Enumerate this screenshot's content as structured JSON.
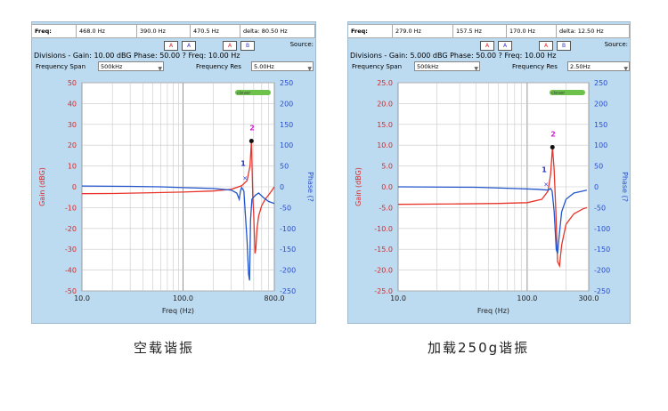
{
  "panels": [
    {
      "freq_bar": [
        "Freq:",
        "468.0 Hz",
        "390.0 Hz",
        "470.5 Hz",
        "delta: 80.50 Hz"
      ],
      "source_label": "Source:",
      "divisions": "Divisions - Gain: 10.00 dBG   Phase: 50.00 ?   Freq: 10.00 Hz",
      "span_label": "Frequency Span",
      "span_value": "500kHz",
      "res_label": "Frequency Res",
      "res_value": "5.00Hz",
      "caption": "空载谐振"
    },
    {
      "freq_bar": [
        "Freq:",
        "279.0 Hz",
        "157.5 Hz",
        "170.0 Hz",
        "delta: 12.50 Hz"
      ],
      "source_label": "Source:",
      "divisions": "Divisions - Gain: 5.000 dBG   Phase: 50.00 ?   Freq: 10.00 Hz",
      "span_label": "Frequency Span",
      "span_value": "500kHz",
      "res_label": "Frequency Res",
      "res_value": "2.50Hz",
      "caption": "加载250g谐振"
    }
  ],
  "icons": {
    "cursor_a": "A",
    "cursor_b": "A",
    "edit_a": "A",
    "edit_b": "B"
  },
  "logo": "clever",
  "chart_data": [
    {
      "type": "line",
      "xlabel": "Freq (Hz)",
      "ylabel": "Gain (dBG)",
      "y2label": "Phase (?",
      "x_scale": "log",
      "xlim": [
        10.0,
        800.0
      ],
      "x_ticks": [
        "10.0",
        "100.0",
        "800.0"
      ],
      "ylim": [
        -50,
        50
      ],
      "y_ticks": [
        "50",
        "40",
        "30",
        "20",
        "10",
        "0",
        "-10",
        "-20",
        "-30",
        "-40",
        "-50"
      ],
      "y2lim": [
        -250,
        250
      ],
      "y2_ticks": [
        "250",
        "200",
        "150",
        "100",
        "50",
        "0",
        "-50",
        "-100",
        "-150",
        "-200",
        "-250"
      ],
      "markers": [
        "1",
        "2"
      ],
      "series": [
        {
          "axis": "gain",
          "color": "#e8352b",
          "points": [
            [
              10,
              -3.3
            ],
            [
              20,
              -3.2
            ],
            [
              50,
              -2.8
            ],
            [
              100,
              -2.5
            ],
            [
              200,
              -2
            ],
            [
              300,
              -1.2
            ],
            [
              380,
              0.5
            ],
            [
              430,
              3
            ],
            [
              460,
              10
            ],
            [
              475,
              22
            ],
            [
              480,
              14
            ],
            [
              490,
              -5
            ],
            [
              500,
              -13
            ],
            [
              515,
              -32
            ],
            [
              525,
              -30
            ],
            [
              540,
              -20
            ],
            [
              560,
              -14
            ],
            [
              600,
              -9
            ],
            [
              650,
              -6
            ],
            [
              700,
              -4
            ],
            [
              750,
              -2
            ],
            [
              800,
              0
            ]
          ]
        },
        {
          "axis": "phase",
          "color": "#2255cc",
          "points": [
            [
              10,
              2
            ],
            [
              30,
              1
            ],
            [
              60,
              0
            ],
            [
              100,
              -2
            ],
            [
              200,
              -4
            ],
            [
              300,
              -8
            ],
            [
              340,
              -15
            ],
            [
              360,
              -30
            ],
            [
              370,
              -10
            ],
            [
              380,
              -2
            ],
            [
              400,
              -10
            ],
            [
              430,
              -130
            ],
            [
              445,
              -210
            ],
            [
              455,
              -225
            ],
            [
              465,
              -80
            ],
            [
              480,
              -30
            ],
            [
              520,
              -20
            ],
            [
              560,
              -15
            ],
            [
              620,
              -25
            ],
            [
              700,
              -35
            ],
            [
              800,
              -40
            ]
          ]
        }
      ]
    },
    {
      "type": "line",
      "xlabel": "Freq (Hz)",
      "ylabel": "Gain (dBG)",
      "y2label": "Phase (?",
      "x_scale": "log",
      "xlim": [
        10.0,
        300.0
      ],
      "x_ticks": [
        "10.0",
        "100.0",
        "300.0"
      ],
      "ylim": [
        -25,
        25
      ],
      "y_ticks": [
        "25.0",
        "20.0",
        "15.0",
        "10.0",
        "5.0",
        "0.0",
        "-5.0",
        "-10.0",
        "-15.0",
        "-20.0",
        "-25.0"
      ],
      "y2lim": [
        -250,
        250
      ],
      "y2_ticks": [
        "250",
        "200",
        "150",
        "100",
        "50",
        "0",
        "-50",
        "-100",
        "-150",
        "-200",
        "-250"
      ],
      "markers": [
        "1",
        "2"
      ],
      "series": [
        {
          "axis": "gain",
          "color": "#e8352b",
          "points": [
            [
              10,
              -4.2
            ],
            [
              30,
              -4.1
            ],
            [
              60,
              -4
            ],
            [
              100,
              -3.8
            ],
            [
              130,
              -3
            ],
            [
              145,
              -1
            ],
            [
              152,
              3
            ],
            [
              157,
              9.5
            ],
            [
              162,
              4
            ],
            [
              167,
              -6
            ],
            [
              172,
              -18
            ],
            [
              178,
              -19
            ],
            [
              185,
              -14
            ],
            [
              200,
              -9
            ],
            [
              230,
              -6.5
            ],
            [
              270,
              -5.3
            ],
            [
              290,
              -5
            ]
          ]
        },
        {
          "axis": "phase",
          "color": "#2255cc",
          "points": [
            [
              10,
              0
            ],
            [
              40,
              -1
            ],
            [
              80,
              -4
            ],
            [
              120,
              -6
            ],
            [
              145,
              -8
            ],
            [
              152,
              -4
            ],
            [
              156,
              -10
            ],
            [
              162,
              -60
            ],
            [
              168,
              -150
            ],
            [
              172,
              -160
            ],
            [
              178,
              -110
            ],
            [
              185,
              -60
            ],
            [
              200,
              -30
            ],
            [
              230,
              -15
            ],
            [
              270,
              -10
            ],
            [
              290,
              -8
            ]
          ]
        }
      ]
    }
  ]
}
